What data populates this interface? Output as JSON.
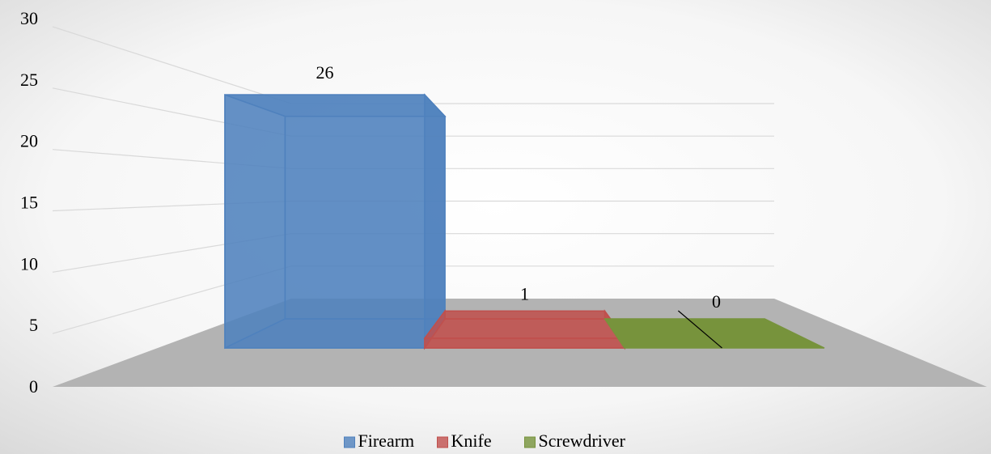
{
  "chart_data": {
    "type": "bar3d",
    "series": [
      {
        "name": "Firearm",
        "color": "#4f81bd",
        "values": [
          26
        ]
      },
      {
        "name": "Knife",
        "color": "#c0504d",
        "values": [
          1
        ]
      },
      {
        "name": "Screwdriver",
        "color": "#77933c",
        "values": [
          0
        ]
      }
    ],
    "ylim": [
      0,
      30
    ],
    "yticks": [
      0,
      5,
      10,
      15,
      20,
      25,
      30
    ],
    "grid": true,
    "legend": "bottom"
  }
}
